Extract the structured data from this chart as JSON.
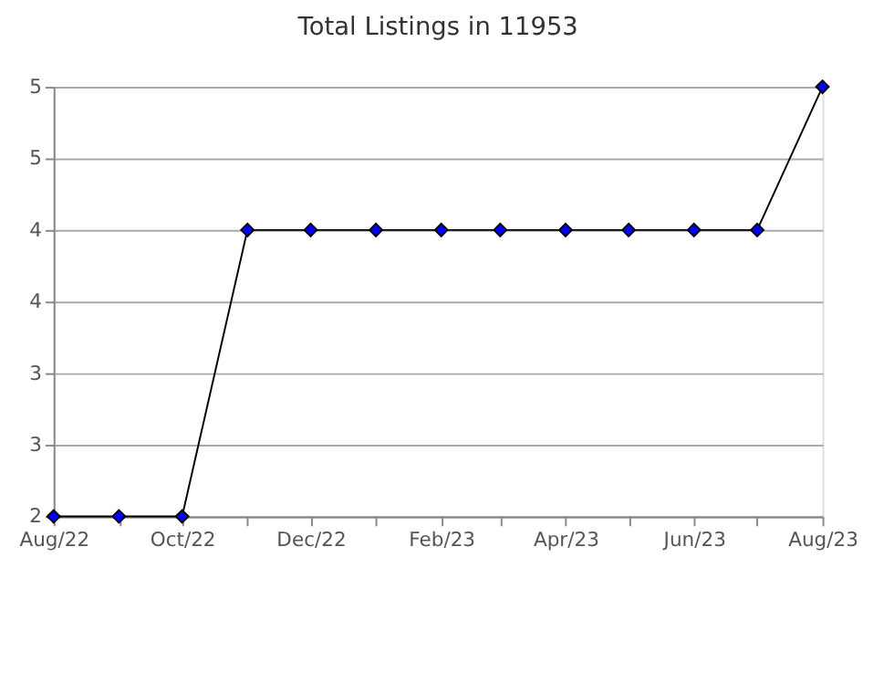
{
  "chart_data": {
    "type": "line",
    "title": "Total Listings in 11953",
    "x": [
      "2022-08",
      "2022-09",
      "2022-10",
      "2022-11",
      "2022-12",
      "2023-01",
      "2023-02",
      "2023-03",
      "2023-04",
      "2023-05",
      "2023-06",
      "2023-07",
      "2023-08"
    ],
    "series": [
      {
        "color": "#0000ff",
        "values": [
          2,
          2,
          2,
          4,
          4,
          4,
          4,
          4,
          4,
          4,
          4,
          4,
          5
        ]
      }
    ],
    "xlim": [
      "2022-08",
      "2023-08"
    ],
    "xticks": [
      {
        "value": "2022-08",
        "label": "Aug/22"
      },
      {
        "value": "2022-09",
        "label": null
      },
      {
        "value": "2022-10",
        "label": "Oct/22"
      },
      {
        "value": "2022-11",
        "label": null
      },
      {
        "value": "2022-12",
        "label": "Dec/22"
      },
      {
        "value": "2023-01",
        "label": null
      },
      {
        "value": "2023-02",
        "label": "Feb/23"
      },
      {
        "value": "2023-03",
        "label": null
      },
      {
        "value": "2023-04",
        "label": "Apr/23"
      },
      {
        "value": "2023-05",
        "label": null
      },
      {
        "value": "2023-06",
        "label": "Jun/23"
      },
      {
        "value": "2023-07",
        "label": null
      },
      {
        "value": "2023-08",
        "label": "Aug/23"
      }
    ],
    "ylim": [
      2,
      5
    ],
    "yticks": [
      2,
      {
        "value": 2.5,
        "label": "3"
      },
      3,
      {
        "value": 3.5,
        "label": "4"
      },
      4,
      {
        "value": 4.5,
        "label": "5"
      },
      5
    ],
    "grid": "y",
    "marker": "diamond",
    "line_style": "solid"
  }
}
